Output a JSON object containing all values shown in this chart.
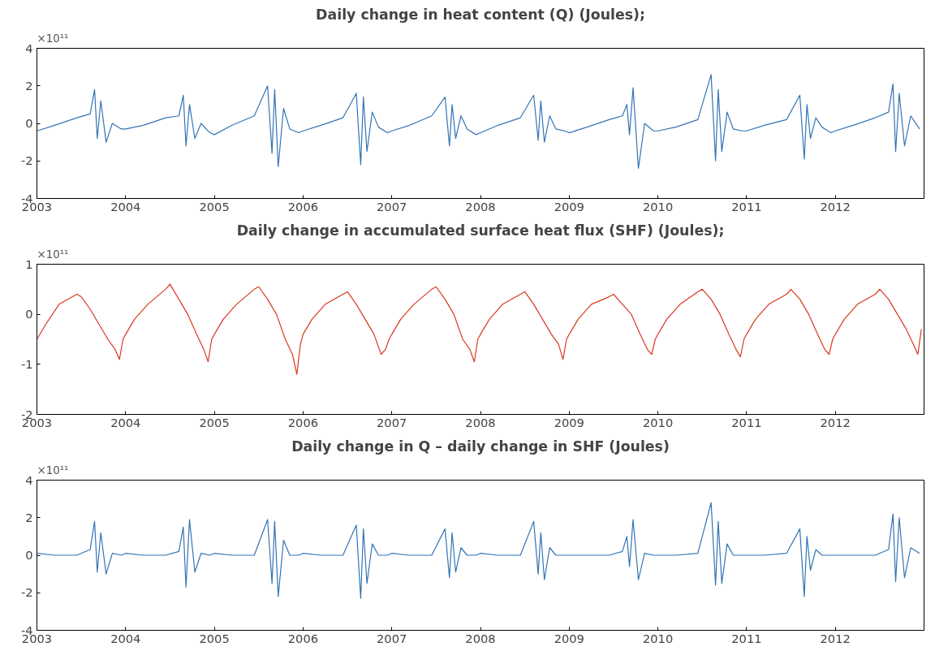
{
  "chart_data": [
    {
      "type": "line",
      "title": "Daily change in heat content (Q) (Joules);",
      "annotations": [
        "×10¹¹"
      ],
      "grid": false,
      "xlim": [
        2003,
        2013
      ],
      "xticks": [
        2003,
        2004,
        2005,
        2006,
        2007,
        2008,
        2009,
        2010,
        2011,
        2012
      ],
      "ylim": [
        -4,
        4
      ],
      "yticks": [
        -4,
        -2,
        0,
        2,
        4
      ],
      "x": [
        2003,
        2003.2,
        2003.45,
        2003.6,
        2003.65,
        2003.68,
        2003.72,
        2003.78,
        2003.85,
        2003.95,
        2004,
        2004.2,
        2004.45,
        2004.6,
        2004.65,
        2004.68,
        2004.72,
        2004.78,
        2004.85,
        2004.95,
        2005,
        2005.2,
        2005.45,
        2005.6,
        2005.65,
        2005.68,
        2005.72,
        2005.78,
        2005.85,
        2005.95,
        2006,
        2006.2,
        2006.45,
        2006.6,
        2006.65,
        2006.68,
        2006.72,
        2006.78,
        2006.85,
        2006.95,
        2007,
        2007.2,
        2007.45,
        2007.6,
        2007.65,
        2007.68,
        2007.72,
        2007.78,
        2007.85,
        2007.95,
        2008,
        2008.2,
        2008.45,
        2008.6,
        2008.65,
        2008.68,
        2008.72,
        2008.78,
        2008.85,
        2008.95,
        2009,
        2009.2,
        2009.45,
        2009.6,
        2009.65,
        2009.68,
        2009.72,
        2009.78,
        2009.85,
        2009.95,
        2010,
        2010.2,
        2010.45,
        2010.6,
        2010.65,
        2010.68,
        2010.72,
        2010.78,
        2010.85,
        2010.95,
        2011,
        2011.2,
        2011.45,
        2011.6,
        2011.65,
        2011.68,
        2011.72,
        2011.78,
        2011.85,
        2011.95,
        2012,
        2012.2,
        2012.45,
        2012.6,
        2012.65,
        2012.68,
        2012.72,
        2012.78,
        2012.85,
        2012.95
      ],
      "series": [
        {
          "color": "#3274b5",
          "values": [
            -0.4,
            -0.1,
            0.3,
            0.5,
            1.8,
            -0.8,
            1.2,
            -1.0,
            0.0,
            -0.3,
            -0.3,
            -0.1,
            0.3,
            0.4,
            1.5,
            -1.2,
            1.0,
            -0.8,
            0.0,
            -0.5,
            -0.6,
            -0.1,
            0.4,
            2.0,
            -1.6,
            1.8,
            -2.3,
            0.8,
            -0.3,
            -0.5,
            -0.4,
            -0.1,
            0.3,
            1.6,
            -2.2,
            1.4,
            -1.5,
            0.6,
            -0.2,
            -0.5,
            -0.4,
            -0.1,
            0.4,
            1.4,
            -1.2,
            1.0,
            -0.8,
            0.4,
            -0.3,
            -0.6,
            -0.5,
            -0.1,
            0.3,
            1.5,
            -0.9,
            1.2,
            -1.0,
            0.4,
            -0.3,
            -0.4,
            -0.5,
            -0.2,
            0.2,
            0.4,
            1.0,
            -0.6,
            1.9,
            -2.4,
            0.0,
            -0.4,
            -0.4,
            -0.2,
            0.2,
            2.6,
            -2.0,
            1.8,
            -1.5,
            0.6,
            -0.3,
            -0.4,
            -0.4,
            -0.1,
            0.2,
            1.5,
            -1.9,
            1.0,
            -0.8,
            0.3,
            -0.2,
            -0.5,
            -0.4,
            -0.1,
            0.3,
            0.6,
            2.1,
            -1.5,
            1.6,
            -1.2,
            0.4,
            -0.3
          ]
        }
      ]
    },
    {
      "type": "line",
      "title": "Daily change in accumulated surface heat flux (SHF) (Joules);",
      "annotations": [
        "×10¹¹"
      ],
      "grid": false,
      "xlim": [
        2003,
        2013
      ],
      "xticks": [
        2003,
        2004,
        2005,
        2006,
        2007,
        2008,
        2009,
        2010,
        2011,
        2012
      ],
      "ylim": [
        -2,
        1
      ],
      "yticks": [
        -2,
        -1,
        0,
        1
      ],
      "x": [
        2003,
        2003.1,
        2003.25,
        2003.45,
        2003.5,
        2003.6,
        2003.7,
        2003.8,
        2003.88,
        2003.93,
        2003.97,
        2004,
        2004.1,
        2004.25,
        2004.45,
        2004.5,
        2004.6,
        2004.7,
        2004.8,
        2004.88,
        2004.93,
        2004.97,
        2005,
        2005.1,
        2005.25,
        2005.45,
        2005.5,
        2005.6,
        2005.7,
        2005.8,
        2005.88,
        2005.93,
        2005.97,
        2006,
        2006.1,
        2006.25,
        2006.45,
        2006.5,
        2006.6,
        2006.7,
        2006.8,
        2006.88,
        2006.93,
        2006.97,
        2007,
        2007.1,
        2007.25,
        2007.45,
        2007.5,
        2007.6,
        2007.7,
        2007.8,
        2007.88,
        2007.93,
        2007.97,
        2008,
        2008.1,
        2008.25,
        2008.45,
        2008.5,
        2008.6,
        2008.7,
        2008.8,
        2008.88,
        2008.93,
        2008.97,
        2009,
        2009.1,
        2009.25,
        2009.45,
        2009.5,
        2009.6,
        2009.7,
        2009.8,
        2009.88,
        2009.93,
        2009.97,
        2010,
        2010.1,
        2010.25,
        2010.45,
        2010.5,
        2010.6,
        2010.7,
        2010.8,
        2010.88,
        2010.93,
        2010.97,
        2011,
        2011.1,
        2011.25,
        2011.45,
        2011.5,
        2011.6,
        2011.7,
        2011.8,
        2011.88,
        2011.93,
        2011.97,
        2012,
        2012.1,
        2012.25,
        2012.45,
        2012.5,
        2012.6,
        2012.7,
        2012.8,
        2012.88,
        2012.93,
        2012.97
      ],
      "series": [
        {
          "color": "#d9381e",
          "values": [
            -0.5,
            -0.2,
            0.2,
            0.4,
            0.35,
            0.1,
            -0.2,
            -0.5,
            -0.7,
            -0.9,
            -0.5,
            -0.4,
            -0.1,
            0.2,
            0.5,
            0.6,
            0.3,
            0.0,
            -0.4,
            -0.7,
            -0.95,
            -0.5,
            -0.4,
            -0.1,
            0.2,
            0.5,
            0.55,
            0.3,
            0.0,
            -0.5,
            -0.8,
            -1.2,
            -0.6,
            -0.4,
            -0.1,
            0.2,
            0.4,
            0.45,
            0.2,
            -0.1,
            -0.4,
            -0.8,
            -0.7,
            -0.5,
            -0.4,
            -0.1,
            0.2,
            0.5,
            0.55,
            0.3,
            0.0,
            -0.5,
            -0.7,
            -0.95,
            -0.5,
            -0.4,
            -0.1,
            0.2,
            0.4,
            0.45,
            0.2,
            -0.1,
            -0.4,
            -0.6,
            -0.9,
            -0.5,
            -0.4,
            -0.1,
            0.2,
            0.35,
            0.4,
            0.2,
            0.0,
            -0.4,
            -0.7,
            -0.8,
            -0.5,
            -0.4,
            -0.1,
            0.2,
            0.45,
            0.5,
            0.3,
            0.0,
            -0.4,
            -0.7,
            -0.85,
            -0.5,
            -0.4,
            -0.1,
            0.2,
            0.4,
            0.5,
            0.3,
            0.0,
            -0.4,
            -0.7,
            -0.8,
            -0.5,
            -0.4,
            -0.1,
            0.2,
            0.4,
            0.5,
            0.3,
            0.0,
            -0.3,
            -0.6,
            -0.8,
            -0.3
          ]
        }
      ]
    },
    {
      "type": "line",
      "title": "Daily change in Q – daily change in SHF (Joules)",
      "annotations": [
        "×10¹¹"
      ],
      "grid": false,
      "xlim": [
        2003,
        2013
      ],
      "xticks": [
        2003,
        2004,
        2005,
        2006,
        2007,
        2008,
        2009,
        2010,
        2011,
        2012
      ],
      "ylim": [
        -4,
        4
      ],
      "yticks": [
        -4,
        -2,
        0,
        2,
        4
      ],
      "x": [
        2003,
        2003.2,
        2003.45,
        2003.6,
        2003.65,
        2003.68,
        2003.72,
        2003.78,
        2003.85,
        2003.95,
        2004,
        2004.2,
        2004.45,
        2004.6,
        2004.65,
        2004.68,
        2004.72,
        2004.78,
        2004.85,
        2004.95,
        2005,
        2005.2,
        2005.45,
        2005.6,
        2005.65,
        2005.68,
        2005.72,
        2005.78,
        2005.85,
        2005.95,
        2006,
        2006.2,
        2006.45,
        2006.6,
        2006.65,
        2006.68,
        2006.72,
        2006.78,
        2006.85,
        2006.95,
        2007,
        2007.2,
        2007.45,
        2007.6,
        2007.65,
        2007.68,
        2007.72,
        2007.78,
        2007.85,
        2007.95,
        2008,
        2008.2,
        2008.45,
        2008.6,
        2008.65,
        2008.68,
        2008.72,
        2008.78,
        2008.85,
        2008.95,
        2009,
        2009.2,
        2009.45,
        2009.6,
        2009.65,
        2009.68,
        2009.72,
        2009.78,
        2009.85,
        2009.95,
        2010,
        2010.2,
        2010.45,
        2010.6,
        2010.65,
        2010.68,
        2010.72,
        2010.78,
        2010.85,
        2010.95,
        2011,
        2011.2,
        2011.45,
        2011.6,
        2011.65,
        2011.68,
        2011.72,
        2011.78,
        2011.85,
        2011.95,
        2012,
        2012.2,
        2012.45,
        2012.6,
        2012.65,
        2012.68,
        2012.72,
        2012.78,
        2012.85,
        2012.95
      ],
      "series": [
        {
          "color": "#3274b5",
          "values": [
            0.1,
            0.0,
            0.0,
            0.3,
            1.8,
            -0.9,
            1.2,
            -1.0,
            0.1,
            0.0,
            0.1,
            0.0,
            0.0,
            0.2,
            1.5,
            -1.7,
            1.9,
            -0.9,
            0.1,
            0.0,
            0.1,
            0.0,
            0.0,
            1.9,
            -1.5,
            1.8,
            -2.2,
            0.8,
            0.0,
            0.0,
            0.1,
            0.0,
            0.0,
            1.6,
            -2.3,
            1.4,
            -1.5,
            0.6,
            0.0,
            0.0,
            0.1,
            0.0,
            0.0,
            1.4,
            -1.2,
            1.2,
            -0.9,
            0.4,
            0.0,
            0.0,
            0.1,
            0.0,
            0.0,
            1.8,
            -1.0,
            1.2,
            -1.3,
            0.4,
            0.0,
            0.0,
            0.0,
            0.0,
            0.0,
            0.2,
            1.0,
            -0.6,
            1.9,
            -1.3,
            0.1,
            0.0,
            0.0,
            0.0,
            0.1,
            2.8,
            -1.6,
            1.8,
            -1.5,
            0.6,
            0.0,
            0.0,
            0.0,
            0.0,
            0.1,
            1.4,
            -2.2,
            1.0,
            -0.8,
            0.3,
            0.0,
            0.0,
            0.0,
            0.0,
            0.0,
            0.3,
            2.2,
            -1.4,
            2.0,
            -1.2,
            0.4,
            0.1
          ]
        }
      ]
    }
  ]
}
